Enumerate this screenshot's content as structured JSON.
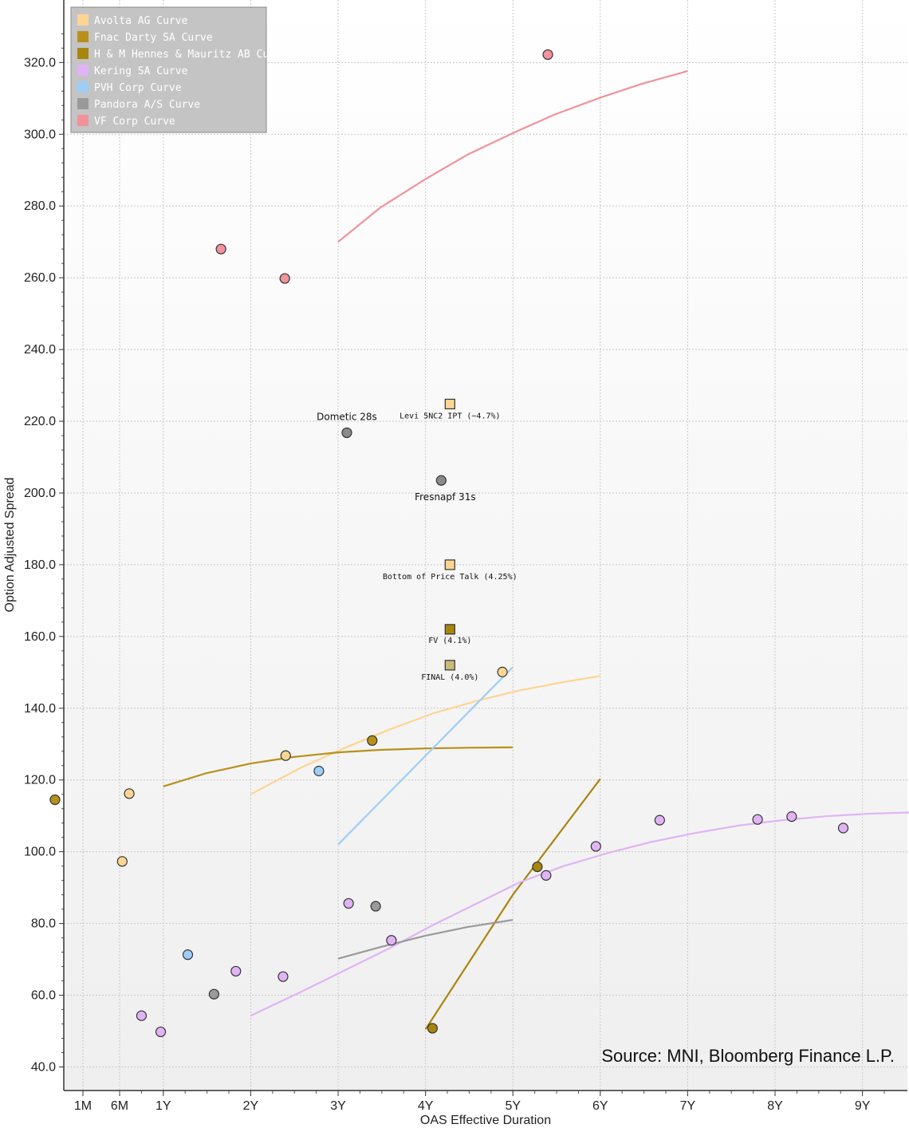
{
  "chart_data": {
    "type": "scatter",
    "title": "",
    "xlabel": "OAS Effective Duration",
    "ylabel": "Option Adjusted Spread",
    "xlim": [
      -0.3,
      9.55
    ],
    "ylim": [
      33,
      334
    ],
    "x_ticks": [
      {
        "label": "1M",
        "value": 0.0
      },
      {
        "label": "6M",
        "value": 0.42
      },
      {
        "label": "1Y",
        "value": 0.92
      },
      {
        "label": "2Y",
        "value": 1.92
      },
      {
        "label": "3Y",
        "value": 2.92
      },
      {
        "label": "4Y",
        "value": 3.92
      },
      {
        "label": "5Y",
        "value": 4.92
      },
      {
        "label": "6Y",
        "value": 5.92
      },
      {
        "label": "7Y",
        "value": 6.92
      },
      {
        "label": "8Y",
        "value": 7.92
      },
      {
        "label": "9Y",
        "value": 8.92
      }
    ],
    "y_ticks": [
      {
        "label": "40.0",
        "value": 40
      },
      {
        "label": "60.0",
        "value": 60
      },
      {
        "label": "80.0",
        "value": 80
      },
      {
        "label": "100.0",
        "value": 100
      },
      {
        "label": "120.0",
        "value": 120
      },
      {
        "label": "140.0",
        "value": 140
      },
      {
        "label": "160.0",
        "value": 160
      },
      {
        "label": "180.0",
        "value": 180
      },
      {
        "label": "200.0",
        "value": 200
      },
      {
        "label": "220.0",
        "value": 220
      },
      {
        "label": "240.0",
        "value": 240
      },
      {
        "label": "260.0",
        "value": 260
      },
      {
        "label": "280.0",
        "value": 280
      },
      {
        "label": "300.0",
        "value": 300
      },
      {
        "label": "320.0",
        "value": 320
      }
    ],
    "legend_position": "top-left",
    "source": "Source: MNI, Bloomberg Finance L.P.",
    "series": [
      {
        "name": "Avolta AG Curve",
        "color": "#fcd592",
        "curve": [
          [
            1.92,
            116
          ],
          [
            2.5,
            123.5
          ],
          [
            3.0,
            129
          ],
          [
            3.5,
            134
          ],
          [
            4.0,
            138.5
          ],
          [
            4.5,
            142
          ],
          [
            5.0,
            145
          ],
          [
            5.5,
            147.3
          ],
          [
            5.92,
            149
          ]
        ],
        "points": [
          [
            0.45,
            97.3
          ],
          [
            0.53,
            116.2
          ],
          [
            2.32,
            126.8
          ],
          [
            4.8,
            150.1
          ]
        ]
      },
      {
        "name": "Fnac Darty SA Curve",
        "color": "#b8901a",
        "curve": [
          [
            0.92,
            118.2
          ],
          [
            1.4,
            121.8
          ],
          [
            1.92,
            124.6
          ],
          [
            2.4,
            126.4
          ],
          [
            2.92,
            127.7
          ],
          [
            3.4,
            128.4
          ],
          [
            3.92,
            128.8
          ],
          [
            4.4,
            129
          ],
          [
            4.92,
            129.1
          ]
        ],
        "points": [
          [
            -0.32,
            114.5
          ],
          [
            3.31,
            131
          ]
        ]
      },
      {
        "name": "H & M Hennes & Mauritz AB Curve",
        "color": "#a8860e",
        "curve": [
          [
            3.92,
            50.5
          ],
          [
            4.92,
            88
          ],
          [
            5.92,
            120.3
          ]
        ],
        "points": [
          [
            4.0,
            50.8
          ],
          [
            5.2,
            95.8
          ]
        ]
      },
      {
        "name": "Kering SA Curve",
        "color": "#e0b4f4",
        "curve": [
          [
            1.92,
            54.3
          ],
          [
            2.5,
            61
          ],
          [
            3.0,
            67
          ],
          [
            3.5,
            73
          ],
          [
            4.0,
            79.5
          ],
          [
            4.5,
            85.5
          ],
          [
            5.0,
            91.5
          ],
          [
            5.5,
            96
          ],
          [
            6.0,
            99.6
          ],
          [
            6.5,
            102.7
          ],
          [
            7.0,
            105.2
          ],
          [
            7.5,
            107.3
          ],
          [
            8.0,
            108.8
          ],
          [
            8.5,
            109.9
          ],
          [
            9.0,
            110.6
          ],
          [
            9.55,
            111
          ]
        ],
        "points": [
          [
            0.67,
            54.3
          ],
          [
            0.89,
            49.8
          ],
          [
            1.75,
            66.7
          ],
          [
            2.29,
            65.2
          ],
          [
            3.04,
            85.6
          ],
          [
            3.53,
            75.3
          ],
          [
            5.3,
            93.4
          ],
          [
            5.87,
            101.5
          ],
          [
            6.6,
            108.8
          ],
          [
            7.72,
            109
          ],
          [
            8.11,
            109.8
          ],
          [
            8.7,
            106.6
          ]
        ]
      },
      {
        "name": "PVH Corp Curve",
        "color": "#9fcdf7",
        "curve": [
          [
            2.92,
            102
          ],
          [
            4.92,
            151.5
          ]
        ],
        "points": [
          [
            1.2,
            71.3
          ],
          [
            2.7,
            122.5
          ]
        ]
      },
      {
        "name": "Pandora A/S Curve",
        "color": "#9a9a9a",
        "curve": [
          [
            2.92,
            70.2
          ],
          [
            3.4,
            73.4
          ],
          [
            3.92,
            76.6
          ],
          [
            4.4,
            79
          ],
          [
            4.92,
            81
          ]
        ],
        "points": [
          [
            1.5,
            60.3
          ],
          [
            3.35,
            84.8
          ]
        ]
      },
      {
        "name": "VF Corp Curve",
        "color": "#f2929b",
        "curve": [
          [
            2.92,
            270
          ],
          [
            3.4,
            279.5
          ],
          [
            3.92,
            287.5
          ],
          [
            4.4,
            294.3
          ],
          [
            4.92,
            300.3
          ],
          [
            5.4,
            305.5
          ],
          [
            5.92,
            310.2
          ],
          [
            6.4,
            314.1
          ],
          [
            6.92,
            317.6
          ]
        ],
        "points": [
          [
            1.58,
            268
          ],
          [
            2.31,
            259.8
          ],
          [
            5.32,
            322.2
          ]
        ]
      }
    ],
    "annotations": [
      {
        "label": "Dometic 28s",
        "x": 3.02,
        "y": 216.8,
        "series": "Pandora A/S Curve",
        "marker": "circle",
        "color": "#8a8a8a"
      },
      {
        "label": "Fresnapf 31s",
        "x": 4.1,
        "y": 203.5,
        "series": "Pandora A/S Curve",
        "marker": "circle",
        "color": "#8a8a8a"
      },
      {
        "label": "Levi 5NC2 IPT (~4.7%)",
        "x": 4.2,
        "y": 224.8,
        "marker": "square",
        "color": "#fcd592"
      },
      {
        "label": "Bottom of Price Talk (4.25%)",
        "x": 4.2,
        "y": 180,
        "marker": "square",
        "color": "#fcd592"
      },
      {
        "label": "FV (4.1%)",
        "x": 4.2,
        "y": 162,
        "marker": "square",
        "color": "#a8860e"
      },
      {
        "label": "FINAL (4.0%)",
        "x": 4.2,
        "y": 152,
        "marker": "square",
        "color": "#c8bc78"
      }
    ]
  }
}
